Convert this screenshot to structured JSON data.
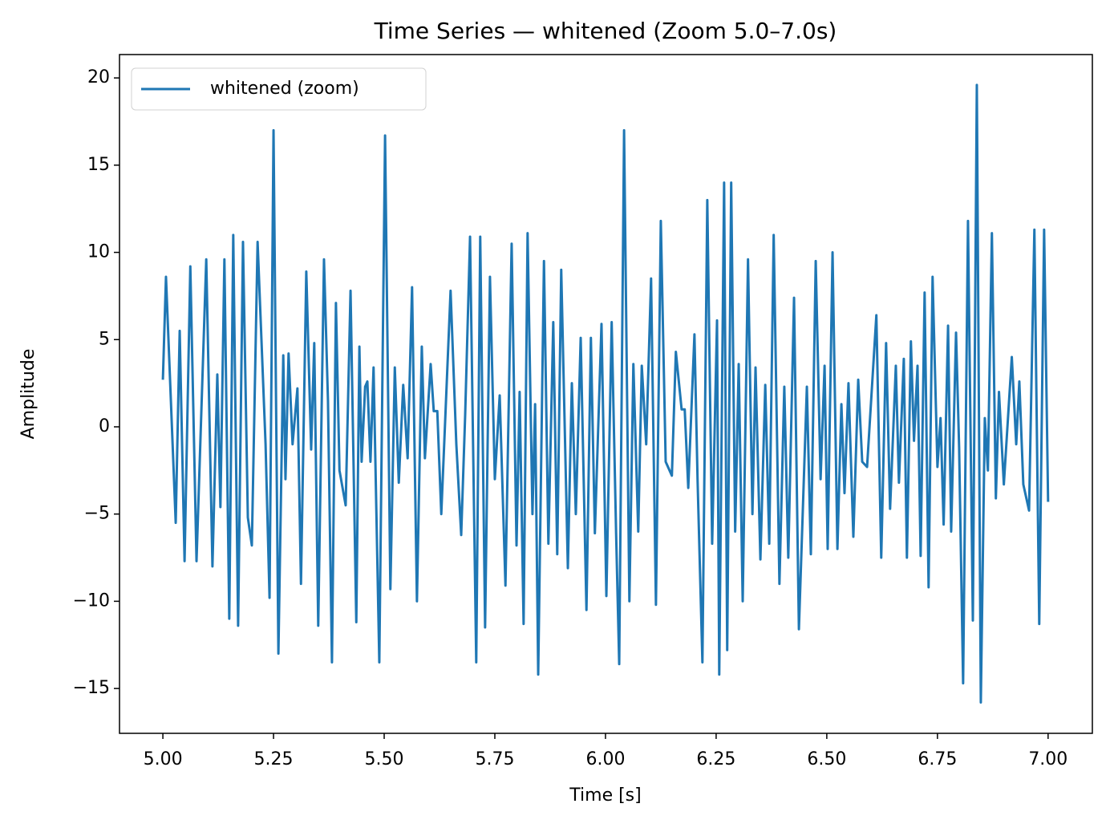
{
  "chart_data": {
    "type": "line",
    "title": "Time Series — whitened (Zoom 5.0–7.0s)",
    "xlabel": "Time [s]",
    "ylabel": "Amplitude",
    "legend": "upper left",
    "grid": false,
    "xlim": [
      4.902,
      7.1
    ],
    "ylim": [
      -17.57,
      21.34
    ],
    "xticks": [
      {
        "value": 5.0,
        "label": "5.00"
      },
      {
        "value": 5.25,
        "label": "5.25"
      },
      {
        "value": 5.5,
        "label": "5.50"
      },
      {
        "value": 5.75,
        "label": "5.75"
      },
      {
        "value": 6.0,
        "label": "6.00"
      },
      {
        "value": 6.25,
        "label": "6.25"
      },
      {
        "value": 6.5,
        "label": "6.50"
      },
      {
        "value": 6.75,
        "label": "6.75"
      },
      {
        "value": 7.0,
        "label": "7.00"
      }
    ],
    "yticks": [
      {
        "value": -15,
        "label": "−15"
      },
      {
        "value": -10,
        "label": "−10"
      },
      {
        "value": -5,
        "label": "−5"
      },
      0,
      5,
      10,
      15,
      20
    ],
    "x": [
      5.0,
      5.007,
      5.029,
      5.038,
      5.049,
      5.062,
      5.076,
      5.098,
      5.112,
      5.123,
      5.13,
      5.139,
      5.15,
      5.159,
      5.17,
      5.181,
      5.192,
      5.201,
      5.214,
      5.232,
      5.241,
      5.25,
      5.261,
      5.272,
      5.277,
      5.284,
      5.293,
      5.304,
      5.312,
      5.324,
      5.335,
      5.342,
      5.351,
      5.364,
      5.373,
      5.382,
      5.391,
      5.399,
      5.413,
      5.424,
      5.437,
      5.444,
      5.449,
      5.457,
      5.462,
      5.469,
      5.476,
      5.489,
      5.502,
      5.514,
      5.524,
      5.533,
      5.543,
      5.553,
      5.563,
      5.574,
      5.585,
      5.592,
      5.605,
      5.612,
      5.62,
      5.629,
      5.65,
      5.663,
      5.674,
      5.683,
      5.694,
      5.708,
      5.717,
      5.728,
      5.739,
      5.75,
      5.761,
      5.774,
      5.788,
      5.799,
      5.806,
      5.815,
      5.824,
      5.835,
      5.841,
      5.848,
      5.861,
      5.871,
      5.882,
      5.891,
      5.9,
      5.915,
      5.924,
      5.933,
      5.944,
      5.957,
      5.967,
      5.976,
      5.991,
      6.002,
      6.014,
      6.024,
      6.031,
      6.042,
      6.054,
      6.063,
      6.074,
      6.082,
      6.092,
      6.103,
      6.114,
      6.125,
      6.136,
      6.15,
      6.159,
      6.172,
      6.179,
      6.187,
      6.201,
      6.208,
      6.219,
      6.23,
      6.241,
      6.252,
      6.257,
      6.268,
      6.275,
      6.284,
      6.293,
      6.301,
      6.31,
      6.322,
      6.332,
      6.339,
      6.35,
      6.361,
      6.37,
      6.38,
      6.393,
      6.404,
      6.413,
      6.426,
      6.437,
      6.455,
      6.464,
      6.475,
      6.486,
      6.495,
      6.502,
      6.513,
      6.524,
      6.533,
      6.54,
      6.549,
      6.56,
      6.571,
      6.58,
      6.591,
      6.612,
      6.623,
      6.634,
      6.643,
      6.656,
      6.663,
      6.674,
      6.681,
      6.69,
      6.697,
      6.705,
      6.712,
      6.721,
      6.73,
      6.739,
      6.75,
      6.757,
      6.764,
      6.774,
      6.781,
      6.792,
      6.799,
      6.808,
      6.819,
      6.83,
      6.839,
      6.848,
      6.857,
      6.864,
      6.873,
      6.882,
      6.889,
      6.9,
      6.918,
      6.928,
      6.935,
      6.944,
      6.957,
      6.969,
      6.98,
      6.991,
      7.0
    ],
    "series": [
      {
        "name": "whitened (zoom)",
        "color": "#1f77b4",
        "values": [
          2.7,
          8.6,
          -5.5,
          5.5,
          -7.7,
          9.2,
          -7.7,
          9.6,
          -8.0,
          3.0,
          -4.6,
          9.6,
          -11.0,
          11.0,
          -11.4,
          10.6,
          -5.2,
          -6.8,
          10.6,
          -1.0,
          -9.8,
          17.0,
          -13.0,
          4.1,
          -3.0,
          4.2,
          -1.0,
          2.2,
          -9.0,
          8.9,
          -1.3,
          4.8,
          -11.4,
          9.6,
          1.5,
          -13.5,
          7.1,
          -2.5,
          -4.5,
          7.8,
          -11.2,
          4.6,
          -2.0,
          2.3,
          2.6,
          -2.0,
          3.4,
          -13.5,
          16.7,
          -9.3,
          3.4,
          -3.2,
          2.4,
          -1.8,
          8.0,
          -10.0,
          4.6,
          -1.8,
          3.6,
          0.9,
          0.9,
          -5.0,
          7.8,
          -1.0,
          -6.2,
          0.7,
          10.9,
          -13.5,
          10.9,
          -11.5,
          8.6,
          -3.0,
          1.8,
          -9.1,
          10.5,
          -6.8,
          2.0,
          -11.3,
          11.1,
          -5.0,
          1.3,
          -14.2,
          9.5,
          -6.7,
          6.0,
          -7.3,
          9.0,
          -8.1,
          2.5,
          -5.0,
          5.1,
          -10.5,
          5.1,
          -6.1,
          5.9,
          -9.7,
          6.0,
          -6.1,
          -13.6,
          17.0,
          -10.0,
          3.6,
          -6.0,
          3.5,
          -1.0,
          8.5,
          -10.2,
          11.8,
          -2.0,
          -2.8,
          4.3,
          1.0,
          1.0,
          -3.5,
          5.3,
          -3.0,
          -13.5,
          13.0,
          -6.7,
          6.1,
          -14.2,
          14.0,
          -12.8,
          14.0,
          -6.0,
          3.6,
          -10.0,
          9.6,
          -5.0,
          3.4,
          -7.6,
          2.4,
          -6.7,
          11.0,
          -9.0,
          2.3,
          -7.5,
          7.4,
          -11.6,
          2.3,
          -7.3,
          9.5,
          -3.0,
          3.5,
          -7.0,
          10.0,
          -7.0,
          1.3,
          -3.8,
          2.5,
          -6.3,
          2.7,
          -2.0,
          -2.3,
          6.4,
          -7.5,
          4.8,
          -4.7,
          3.5,
          -3.2,
          3.9,
          -7.5,
          4.9,
          -0.8,
          3.5,
          -7.4,
          7.7,
          -9.2,
          8.6,
          -2.3,
          0.5,
          -5.6,
          5.8,
          -6.0,
          5.4,
          -1.2,
          -14.7,
          11.8,
          -11.1,
          19.6,
          -15.8,
          0.5,
          -2.5,
          11.1,
          -4.1,
          2.0,
          -3.3,
          4.0,
          -1.0,
          2.6,
          -3.3,
          -4.8,
          11.3,
          -11.3,
          11.3,
          -4.3
        ]
      }
    ]
  }
}
